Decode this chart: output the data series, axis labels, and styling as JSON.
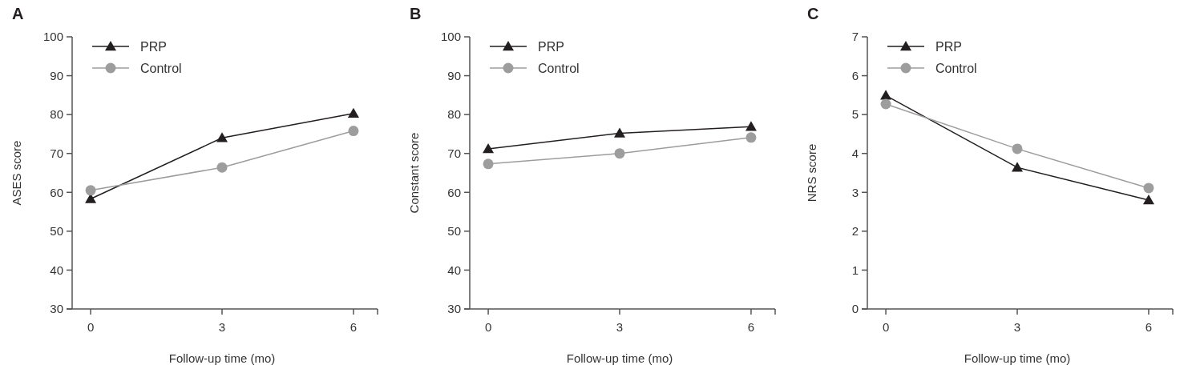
{
  "chart_data": [
    {
      "type": "line",
      "title": "A",
      "xlabel": "Follow-up time (mo)",
      "ylabel": "ASES score",
      "x": [
        0,
        3,
        6
      ],
      "xlim": [
        -0.55,
        6.55
      ],
      "xticks": [
        0,
        3,
        6
      ],
      "ylim": [
        30,
        100
      ],
      "yticks": [
        30,
        40,
        50,
        60,
        70,
        80,
        90,
        100
      ],
      "legend": "top left",
      "grid": false,
      "series": [
        {
          "name": "PRP",
          "color": "#231f20",
          "marker": "triangle",
          "values": [
            58.3,
            74,
            80.3
          ]
        },
        {
          "name": "Control",
          "color": "#9d9d9d",
          "marker": "circle",
          "values": [
            60.5,
            66.4,
            75.8
          ]
        }
      ]
    },
    {
      "type": "line",
      "title": "B",
      "xlabel": "Follow-up time (mo)",
      "ylabel": "Constant score",
      "x": [
        0,
        3,
        6
      ],
      "xlim": [
        -0.55,
        6.55
      ],
      "xticks": [
        0,
        3,
        6
      ],
      "ylim": [
        30,
        100
      ],
      "yticks": [
        30,
        40,
        50,
        60,
        70,
        80,
        90,
        100
      ],
      "legend": "top left",
      "grid": false,
      "series": [
        {
          "name": "PRP",
          "color": "#231f20",
          "marker": "triangle",
          "values": [
            71.2,
            75.2,
            76.9
          ]
        },
        {
          "name": "Control",
          "color": "#9d9d9d",
          "marker": "circle",
          "values": [
            67.3,
            70,
            74.1
          ]
        }
      ]
    },
    {
      "type": "line",
      "title": "C",
      "xlabel": "Follow-up time (mo)",
      "ylabel": "NRS score",
      "x": [
        0,
        3,
        6
      ],
      "xlim": [
        -0.55,
        6.55
      ],
      "xticks": [
        0,
        3,
        6
      ],
      "ylim": [
        0,
        7
      ],
      "yticks": [
        0,
        1,
        2,
        3,
        4,
        5,
        6,
        7
      ],
      "legend": "top left",
      "grid": false,
      "series": [
        {
          "name": "PRP",
          "color": "#231f20",
          "marker": "triangle",
          "values": [
            5.49,
            3.64,
            2.8
          ]
        },
        {
          "name": "Control",
          "color": "#9d9d9d",
          "marker": "circle",
          "values": [
            5.27,
            4.12,
            3.11
          ]
        }
      ]
    }
  ]
}
